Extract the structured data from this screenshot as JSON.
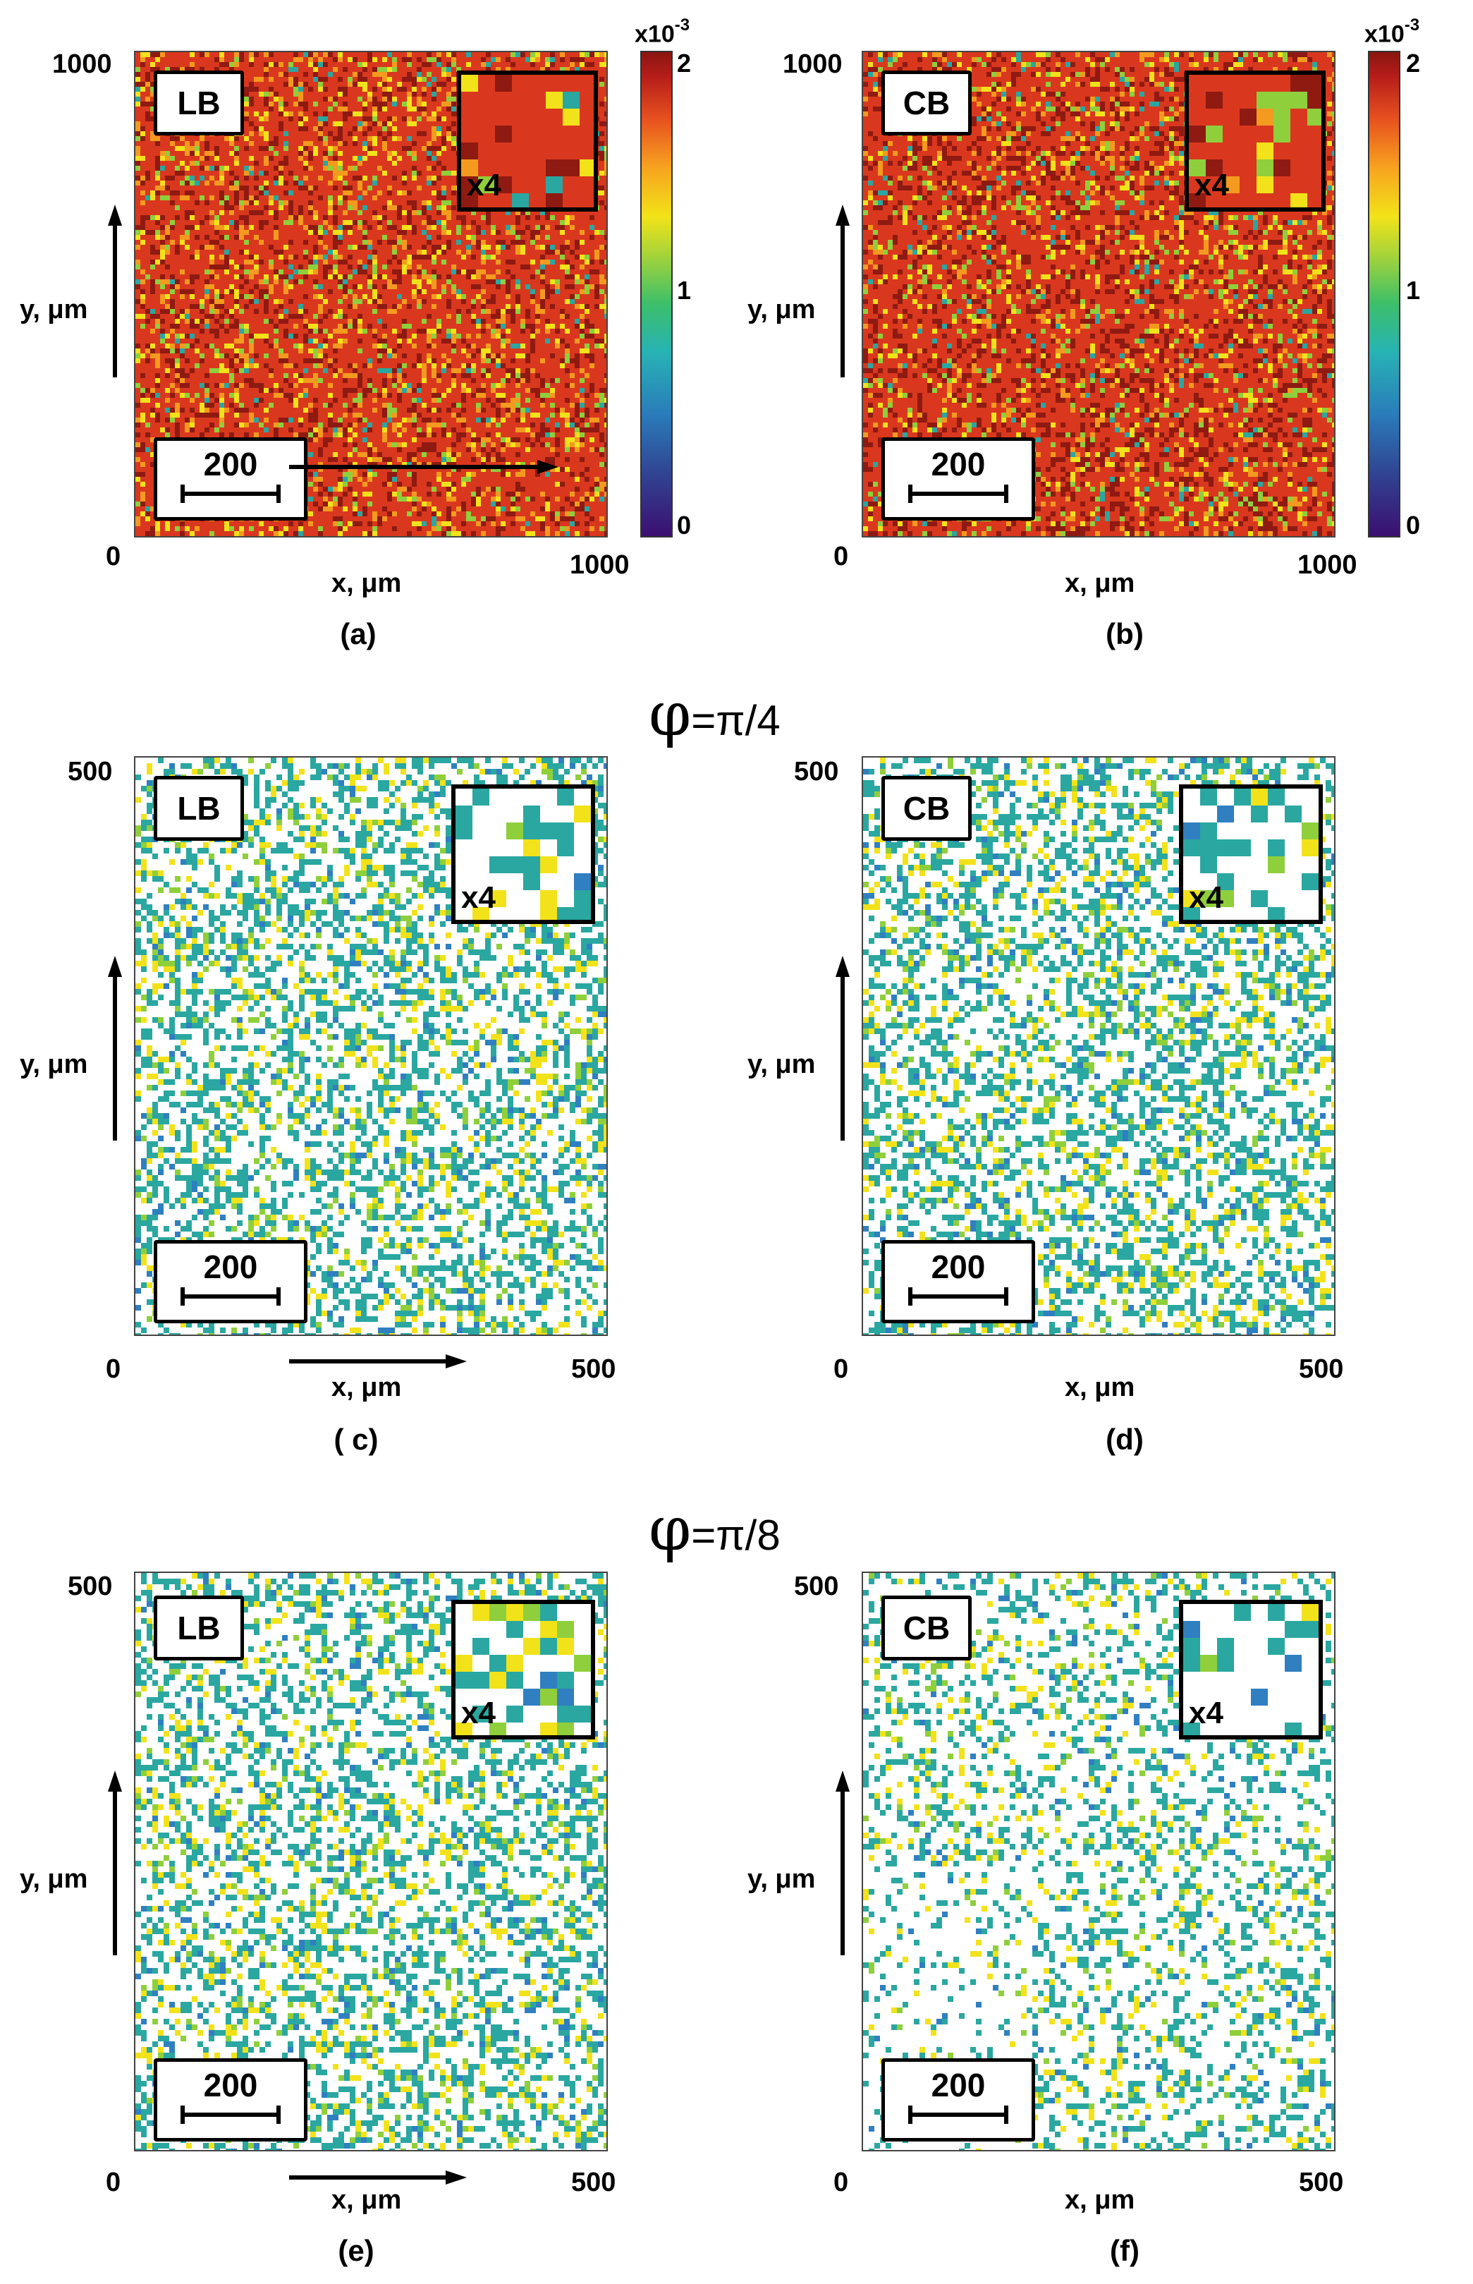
{
  "panels": [
    {
      "id": "a",
      "caption": "(a)",
      "tag": "LB",
      "x_min": "0",
      "x_max": "1000",
      "y_max": "1000",
      "xlabel": "x, μm",
      "ylabel": "y, μm",
      "scalebar": "200",
      "inset_label": "x4",
      "style": "dense_hot",
      "colorbar": true
    },
    {
      "id": "b",
      "caption": "(b)",
      "tag": "CB",
      "x_min": "0",
      "x_max": "1000",
      "y_max": "1000",
      "xlabel": "x, μm",
      "ylabel": "y, μm",
      "scalebar": "200",
      "inset_label": "x4",
      "style": "dense_hot2",
      "colorbar": true
    },
    {
      "id": "c",
      "caption": "( c)",
      "tag": "LB",
      "x_min": "0",
      "x_max": "500",
      "y_max": "500",
      "xlabel": "x, μm",
      "ylabel": "y, μm",
      "scalebar": "200",
      "inset_label": "x4",
      "style": "sparse",
      "colorbar": false
    },
    {
      "id": "d",
      "caption": "(d)",
      "tag": "CB",
      "x_min": "0",
      "x_max": "500",
      "y_max": "500",
      "xlabel": "x, μm",
      "ylabel": "y, μm",
      "scalebar": "200",
      "inset_label": "x4",
      "style": "sparse",
      "colorbar": false
    },
    {
      "id": "e",
      "caption": "(e)",
      "tag": "LB",
      "x_min": "0",
      "x_max": "500",
      "y_max": "500",
      "xlabel": "x, μm",
      "ylabel": "y, μm",
      "scalebar": "200",
      "inset_label": "x4",
      "style": "sparse2",
      "colorbar": false
    },
    {
      "id": "f",
      "caption": "(f)",
      "tag": "CB",
      "x_min": "0",
      "x_max": "500",
      "y_max": "500",
      "xlabel": "x, μm",
      "ylabel": "y, μm",
      "scalebar": "200",
      "inset_label": "x4",
      "style": "sparse3",
      "colorbar": false
    }
  ],
  "colorbar": {
    "multiplier_base": "x10",
    "multiplier_exp": "-3",
    "ticks": [
      "2",
      "1",
      "0"
    ]
  },
  "section_headers": [
    {
      "symbol": "φ",
      "text": "=π/4"
    },
    {
      "symbol": "φ",
      "text": "=π/8"
    }
  ],
  "colors": {
    "dark_red": "#8e1a12",
    "red": "#d9381e",
    "orange": "#f39a1f",
    "yellow": "#f2e21a",
    "green": "#8fcf3c",
    "teal": "#2aa7a0",
    "blue": "#2f7fc1"
  }
}
